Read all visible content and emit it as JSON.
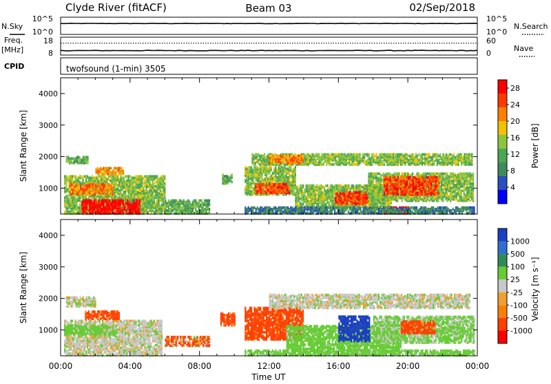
{
  "header": {
    "station": "Clyde River (fitACF)",
    "beam": "Beam 03",
    "date": "02/Sep/2018"
  },
  "colors": {
    "power_scale": [
      "#0000ff",
      "#2a4dbf",
      "#3e8a5c",
      "#4da654",
      "#8cc63f",
      "#f2c200",
      "#ff8000",
      "#ff3a00",
      "#ff0000"
    ],
    "velocity_scale": [
      "#1a3fbf",
      "#2f6fd0",
      "#2e8b57",
      "#66cc33",
      "#c8c8c8",
      "#f0a030",
      "#ff8000",
      "#ff4000",
      "#ff0000"
    ],
    "ground_scatter": "#c0c0c0"
  },
  "chart_data": [
    {
      "type": "line",
      "panel": "noise",
      "left_label": "N.Sky",
      "right_label": "N.Search",
      "left_ticks": [
        "10^5",
        "10^0"
      ],
      "right_ticks": [
        "10^5",
        "10^0"
      ],
      "x": [
        0,
        24
      ],
      "series": [
        {
          "values": [
            1500,
            1500
          ]
        }
      ]
    },
    {
      "type": "line",
      "panel": "frequency",
      "left_label": "Freq.",
      "left_units": "[MHz]",
      "right_label": "Nave",
      "left_ticks": [
        18,
        8
      ],
      "right_ticks": [
        60,
        0
      ],
      "x": [
        0,
        24
      ],
      "series": [
        {
          "values": [
            10.5,
            10.5
          ]
        },
        {
          "values": [
            40,
            40
          ]
        }
      ]
    },
    {
      "type": "table",
      "panel": "cpid",
      "label": "CPID",
      "text": "twofsound (1-min) 3505"
    },
    {
      "type": "heatmap",
      "panel": "power",
      "ylabel": "Slant Range [km]",
      "xlabel": "",
      "ylim": [
        180,
        4500
      ],
      "yticks": [
        1000,
        2000,
        3000,
        4000
      ],
      "colorbar_label": "Power [dB]",
      "colorbar_ticks": [
        4,
        8,
        12,
        16,
        20,
        24,
        28
      ],
      "colorbar_range": [
        0,
        30
      ],
      "regions": [
        {
          "t0": 0.2,
          "t1": 6.0,
          "r0": 200,
          "r1": 1400,
          "value": 14
        },
        {
          "t0": 1.2,
          "t1": 4.6,
          "r0": 200,
          "r1": 650,
          "value": 29
        },
        {
          "t0": 0.5,
          "t1": 3.0,
          "r0": 800,
          "r1": 1150,
          "value": 22
        },
        {
          "t0": 2.0,
          "t1": 3.6,
          "r0": 1450,
          "r1": 1650,
          "value": 20
        },
        {
          "t0": 0.3,
          "t1": 1.6,
          "r0": 1800,
          "r1": 2000,
          "value": 12
        },
        {
          "t0": 6.0,
          "t1": 8.6,
          "r0": 200,
          "r1": 650,
          "value": 12
        },
        {
          "t0": 9.3,
          "t1": 9.9,
          "r0": 1150,
          "r1": 1450,
          "value": 12
        },
        {
          "t0": 10.6,
          "t1": 13.5,
          "r0": 800,
          "r1": 1700,
          "value": 14
        },
        {
          "t0": 11.2,
          "t1": 13.2,
          "r0": 850,
          "r1": 1150,
          "value": 25
        },
        {
          "t0": 11.0,
          "t1": 23.7,
          "r0": 1750,
          "r1": 2100,
          "value": 14
        },
        {
          "t0": 12.0,
          "t1": 14.0,
          "r0": 1800,
          "r1": 2050,
          "value": 21
        },
        {
          "t0": 13.5,
          "t1": 19.0,
          "r0": 400,
          "r1": 1100,
          "value": 14
        },
        {
          "t0": 15.8,
          "t1": 17.7,
          "r0": 500,
          "r1": 900,
          "value": 25
        },
        {
          "t0": 17.7,
          "t1": 23.8,
          "r0": 600,
          "r1": 1500,
          "value": 14
        },
        {
          "t0": 18.6,
          "t1": 21.8,
          "r0": 800,
          "r1": 1350,
          "value": 25
        },
        {
          "t0": 18.6,
          "t1": 20.0,
          "r0": 200,
          "r1": 400,
          "value": 29
        },
        {
          "t0": 10.6,
          "t1": 23.8,
          "r0": 200,
          "r1": 400,
          "value": 8
        }
      ]
    },
    {
      "type": "heatmap",
      "panel": "velocity",
      "ylabel": "Slant Range [km]",
      "xlabel": "Time UT",
      "ylim": [
        180,
        4500
      ],
      "yticks": [
        1000,
        2000,
        3000,
        4000
      ],
      "colorbar_label": "Velocity [m s⁻¹]",
      "colorbar_ticks": [
        1000,
        500,
        100,
        25,
        -25,
        -100,
        -500,
        -1000
      ],
      "xticks": [
        "00:00",
        "04:00",
        "08:00",
        "12:00",
        "16:00",
        "20:00",
        "00:00"
      ],
      "xlim": [
        0,
        24
      ],
      "regions": [
        {
          "t0": 0.2,
          "t1": 5.8,
          "r0": 200,
          "r1": 1300,
          "value": 0
        },
        {
          "t0": 0.2,
          "t1": 3.2,
          "r0": 850,
          "r1": 1150,
          "value": 60
        },
        {
          "t0": 1.4,
          "t1": 3.4,
          "r0": 1350,
          "r1": 1600,
          "value": -250
        },
        {
          "t0": 0.3,
          "t1": 2.0,
          "r0": 1750,
          "r1": 2050,
          "value": 0
        },
        {
          "t0": 6.0,
          "t1": 8.6,
          "r0": 500,
          "r1": 800,
          "value": -150
        },
        {
          "t0": 9.2,
          "t1": 10.0,
          "r0": 1150,
          "r1": 1550,
          "value": -250
        },
        {
          "t0": 10.6,
          "t1": 14.0,
          "r0": 700,
          "r1": 1700,
          "value": -250
        },
        {
          "t0": 12.0,
          "t1": 23.6,
          "r0": 1700,
          "r1": 2150,
          "value": 0
        },
        {
          "t0": 13.0,
          "t1": 19.6,
          "r0": 350,
          "r1": 1150,
          "value": 60
        },
        {
          "t0": 16.0,
          "t1": 17.8,
          "r0": 650,
          "r1": 1450,
          "value": 700
        },
        {
          "t0": 18.0,
          "t1": 23.8,
          "r0": 600,
          "r1": 1450,
          "value": 40
        },
        {
          "t0": 19.6,
          "t1": 21.6,
          "r0": 900,
          "r1": 1300,
          "value": -250
        },
        {
          "t0": 10.6,
          "t1": 23.8,
          "r0": 200,
          "r1": 350,
          "value": 60
        }
      ]
    }
  ]
}
